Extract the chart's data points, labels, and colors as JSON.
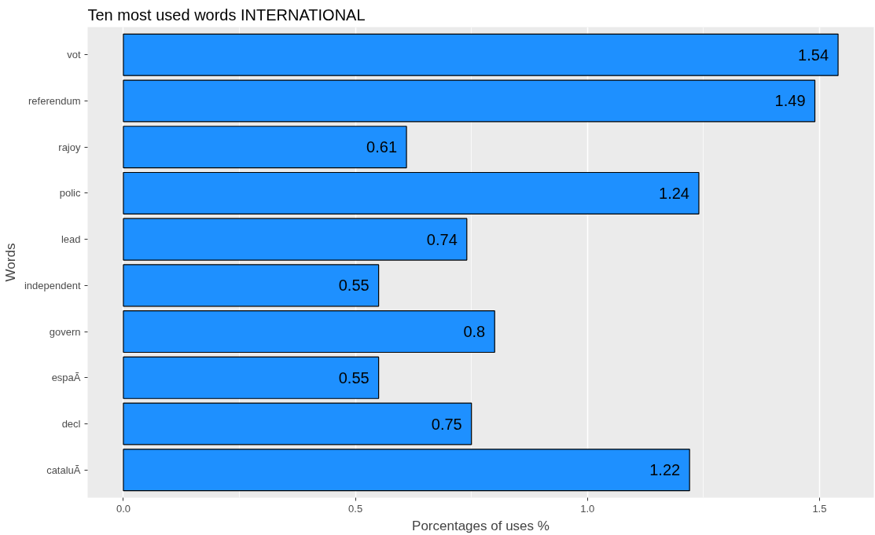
{
  "chart_data": {
    "type": "bar",
    "orientation": "horizontal",
    "title": "Ten most used words INTERNATIONAL",
    "xlabel": "Porcentages of uses %",
    "ylabel": "Words",
    "categories": [
      "vot",
      "referendum",
      "rajoy",
      "polic",
      "lead",
      "independent",
      "govern",
      "espaÃ",
      "decl",
      "cataluÃ"
    ],
    "values": [
      1.54,
      1.49,
      0.61,
      1.24,
      0.74,
      0.55,
      0.8,
      0.55,
      0.75,
      1.22
    ],
    "color": "#1e90ff",
    "data_labels": true,
    "grid": "x",
    "xlim": [
      -0.077,
      1.617
    ],
    "xticks": [
      {
        "value": 0,
        "label": "0.0"
      },
      {
        "value": 0.5,
        "label": "0.5"
      },
      {
        "value": 1,
        "label": "1.0"
      },
      {
        "value": 1.5,
        "label": "1.5"
      }
    ]
  }
}
